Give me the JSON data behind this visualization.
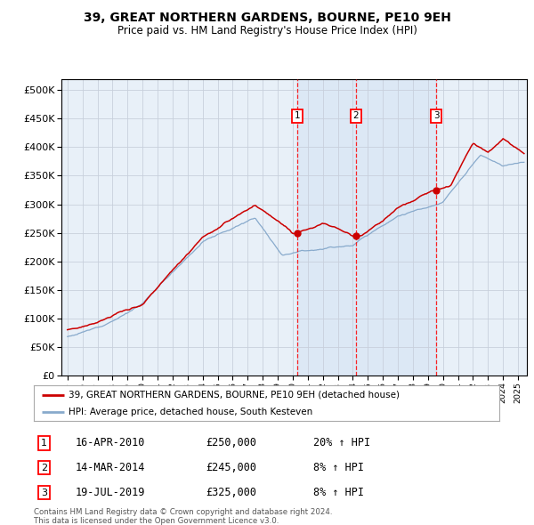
{
  "title": "39, GREAT NORTHERN GARDENS, BOURNE, PE10 9EH",
  "subtitle": "Price paid vs. HM Land Registry's House Price Index (HPI)",
  "red_label": "39, GREAT NORTHERN GARDENS, BOURNE, PE10 9EH (detached house)",
  "blue_label": "HPI: Average price, detached house, South Kesteven",
  "sale_events": [
    {
      "num": 1,
      "date": "16-APR-2010",
      "price": 250000,
      "pct": "20%",
      "dir": "↑"
    },
    {
      "num": 2,
      "date": "14-MAR-2014",
      "price": 245000,
      "pct": "8%",
      "dir": "↑"
    },
    {
      "num": 3,
      "date": "19-JUL-2019",
      "price": 325000,
      "pct": "8%",
      "dir": "↑"
    }
  ],
  "sale_dates_decimal": [
    2010.29,
    2014.2,
    2019.55
  ],
  "sale_prices": [
    250000,
    245000,
    325000
  ],
  "ylim": [
    0,
    520000
  ],
  "yticks": [
    0,
    50000,
    100000,
    150000,
    200000,
    250000,
    300000,
    350000,
    400000,
    450000,
    500000
  ],
  "ytick_labels": [
    "£0",
    "£50K",
    "£100K",
    "£150K",
    "£200K",
    "£250K",
    "£300K",
    "£350K",
    "£400K",
    "£450K",
    "£500K"
  ],
  "xlim_start": 1994.6,
  "xlim_end": 2025.6,
  "plot_bg": "#e8f0f8",
  "grid_color": "#c8d0dc",
  "red_color": "#cc0000",
  "blue_color": "#88aacc",
  "footnote1": "Contains HM Land Registry data © Crown copyright and database right 2024.",
  "footnote2": "This data is licensed under the Open Government Licence v3.0."
}
